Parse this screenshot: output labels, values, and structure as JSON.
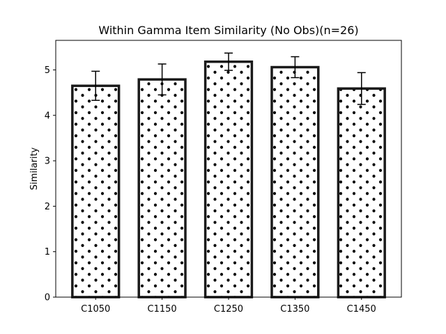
{
  "chart_data": {
    "type": "bar",
    "title": "Within Gamma Item Similarity (No Obs)(n=26)",
    "xlabel": "",
    "ylabel": "Similarity",
    "categories": [
      "C1050",
      "C1150",
      "C1250",
      "C1350",
      "C1450"
    ],
    "values": [
      4.65,
      4.79,
      5.18,
      5.06,
      4.59
    ],
    "errors": [
      0.32,
      0.34,
      0.19,
      0.23,
      0.35
    ],
    "ylim": [
      0,
      5.65
    ],
    "yticks": [
      0,
      1,
      2,
      3,
      4,
      5
    ],
    "grid": false,
    "legend": "none",
    "colors": {
      "bar_fill": "#ffffff",
      "bar_edge": "#1a1a1a",
      "hatch_dots": "#000000",
      "error_bar": "#000000",
      "axes": "#000000"
    }
  }
}
